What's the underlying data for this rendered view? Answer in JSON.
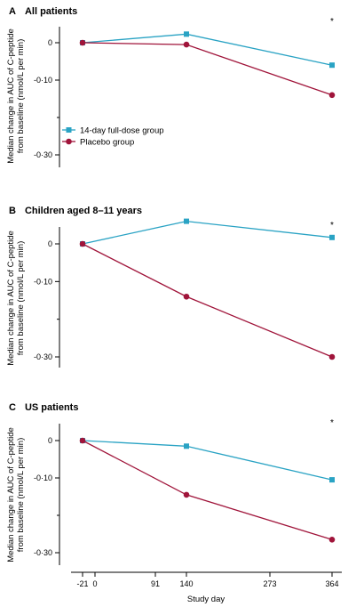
{
  "colors": {
    "treatment": "#2aa3c4",
    "placebo": "#a0143a",
    "axis": "#000000"
  },
  "x_axis": {
    "label": "Study day",
    "tick_labels": [
      "-21",
      "0",
      "91",
      "140",
      "273",
      "364"
    ],
    "tick_values": [
      -21,
      0,
      91,
      140,
      273,
      364
    ]
  },
  "legend": {
    "items": [
      {
        "label": "14-day full-dose group",
        "series": "treatment"
      },
      {
        "label": "Placebo group",
        "series": "placebo"
      }
    ]
  },
  "chart_data": [
    {
      "type": "line",
      "title": "A   All patients",
      "ylabel_line1": "Median change in AUC of C-peptide",
      "ylabel_line2": "from baseline (nmol/L per min)",
      "ylim": [
        -0.3,
        0.0
      ],
      "yticks": [
        {
          "v": 0,
          "label": "0"
        },
        {
          "v": -0.1,
          "label": "-0·10"
        },
        {
          "v": -0.3,
          "label": "-0·30"
        }
      ],
      "x": [
        -21,
        140,
        364
      ],
      "series": [
        {
          "name": "14-day full-dose group",
          "key": "treatment",
          "values": [
            0.0,
            0.023,
            -0.06
          ]
        },
        {
          "name": "Placebo group",
          "key": "placebo",
          "values": [
            0.0,
            -0.005,
            -0.14
          ]
        }
      ],
      "annotation": "*",
      "show_legend": true
    },
    {
      "type": "line",
      "title": "B   Children aged 8–11 years",
      "ylabel_line1": "Median change in AUC of C-peptide",
      "ylabel_line2": "from baseline (nmol/L per min)",
      "ylim": [
        -0.3,
        0.0
      ],
      "yticks": [
        {
          "v": 0,
          "label": "0"
        },
        {
          "v": -0.1,
          "label": "-0·10"
        },
        {
          "v": -0.3,
          "label": "-0·30"
        }
      ],
      "x": [
        -21,
        140,
        364
      ],
      "series": [
        {
          "name": "14-day full-dose group",
          "key": "treatment",
          "values": [
            0.0,
            0.06,
            0.017
          ]
        },
        {
          "name": "Placebo group",
          "key": "placebo",
          "values": [
            0.0,
            -0.14,
            -0.3
          ]
        }
      ],
      "annotation": "*",
      "show_legend": false
    },
    {
      "type": "line",
      "title": "C   US patients",
      "ylabel_line1": "Median change in AUC of C-peptide",
      "ylabel_line2": "from baseline (nmol/L per min)",
      "ylim": [
        -0.3,
        0.0
      ],
      "yticks": [
        {
          "v": 0,
          "label": "0"
        },
        {
          "v": -0.1,
          "label": "-0·10"
        },
        {
          "v": -0.3,
          "label": "-0·30"
        }
      ],
      "x": [
        -21,
        140,
        364
      ],
      "series": [
        {
          "name": "14-day full-dose group",
          "key": "treatment",
          "values": [
            0.0,
            -0.015,
            -0.105
          ]
        },
        {
          "name": "Placebo group",
          "key": "placebo",
          "values": [
            0.0,
            -0.145,
            -0.265
          ]
        }
      ],
      "annotation": "*",
      "show_legend": false
    }
  ]
}
